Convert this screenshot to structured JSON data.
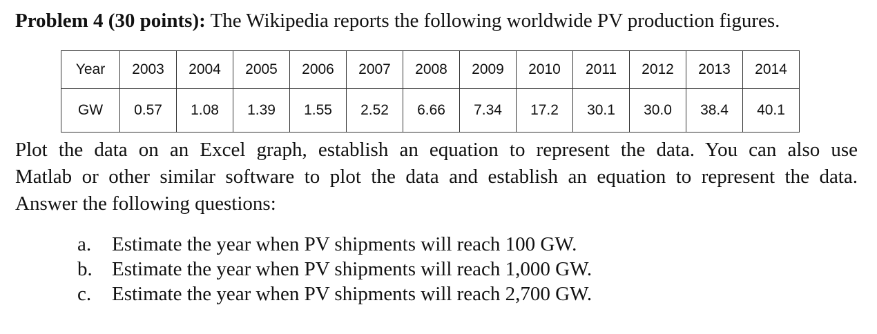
{
  "problem": {
    "title_bold": "Problem 4 (30 points):",
    "title_rest": " The Wikipedia reports the following worldwide PV production figures."
  },
  "table": {
    "rows": [
      {
        "header": "Year",
        "values": [
          "2003",
          "2004",
          "2005",
          "2006",
          "2007",
          "2008",
          "2009",
          "2010",
          "2011",
          "2012",
          "2013",
          "2014"
        ]
      },
      {
        "header": "GW",
        "values": [
          "0.57",
          "1.08",
          "1.39",
          "1.55",
          "2.52",
          "6.66",
          "7.34",
          "17.2",
          "30.1",
          "30.0",
          "38.4",
          "40.1"
        ]
      }
    ]
  },
  "instructions": {
    "lines": [
      "Plot the data on an Excel graph, establish an equation to represent the data. You can also use",
      "Matlab or other similar software to plot the data and establish an equation to represent the data.",
      "Answer the following questions:"
    ]
  },
  "questions": [
    {
      "marker": "a.",
      "text": "Estimate the year when PV shipments will reach 100 GW."
    },
    {
      "marker": "b.",
      "text": "Estimate the year when PV shipments will reach 1,000 GW."
    },
    {
      "marker": "c.",
      "text": "Estimate the year when PV shipments will reach 2,700 GW."
    }
  ]
}
